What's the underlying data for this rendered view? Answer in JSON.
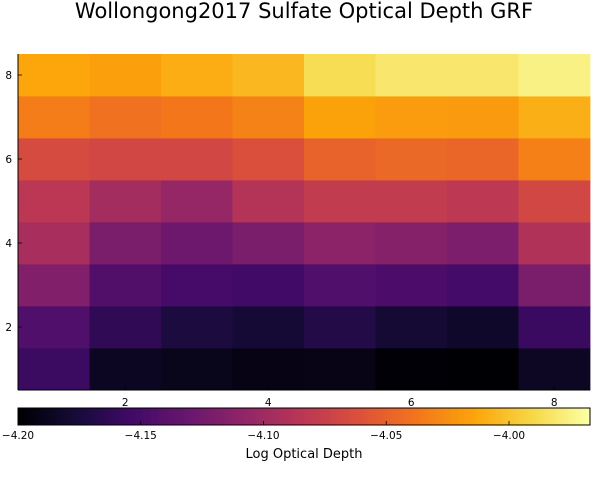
{
  "chart_data": {
    "type": "heatmap",
    "title": "Wollongong2017 Sulfate Optical Depth GRF",
    "colormap": "inferno",
    "x": [
      1,
      2,
      3,
      4,
      5,
      6,
      7,
      8
    ],
    "y": [
      1,
      2,
      3,
      4,
      5,
      6,
      7,
      8
    ],
    "xticks": [
      "2",
      "4",
      "6",
      "8"
    ],
    "yticks": [
      "2",
      "4",
      "6",
      "8"
    ],
    "z_by_row_from_bottom": [
      [
        -4.157,
        -4.187,
        -4.19,
        -4.193,
        -4.192,
        -4.199,
        -4.2,
        -4.186
      ],
      [
        -4.145,
        -4.163,
        -4.174,
        -4.178,
        -4.17,
        -4.179,
        -4.183,
        -4.158
      ],
      [
        -4.117,
        -4.144,
        -4.151,
        -4.154,
        -4.145,
        -4.148,
        -4.152,
        -4.121
      ],
      [
        -4.095,
        -4.121,
        -4.128,
        -4.121,
        -4.111,
        -4.115,
        -4.12,
        -4.09
      ],
      [
        -4.084,
        -4.097,
        -4.105,
        -4.088,
        -4.079,
        -4.079,
        -4.083,
        -4.069
      ],
      [
        -4.066,
        -4.069,
        -4.069,
        -4.062,
        -4.049,
        -4.045,
        -4.047,
        -4.032
      ],
      [
        -4.034,
        -4.04,
        -4.037,
        -4.031,
        -4.015,
        -4.018,
        -4.019,
        -4.009
      ],
      [
        -4.013,
        -4.016,
        -4.01,
        -4.005,
        -3.987,
        -3.981,
        -3.981,
        -3.975
      ]
    ],
    "colorbar": {
      "label": "Log Optical Depth",
      "ticks": [
        "−4.20",
        "−4.15",
        "−4.10",
        "−4.05",
        "−4.00"
      ],
      "tick_values": [
        -4.2,
        -4.15,
        -4.1,
        -4.05,
        -4.0
      ],
      "range": [
        -4.2,
        -3.967
      ]
    },
    "xlim": [
      0.5,
      8.5
    ],
    "ylim": [
      0.5,
      8.5
    ],
    "grid": false
  }
}
